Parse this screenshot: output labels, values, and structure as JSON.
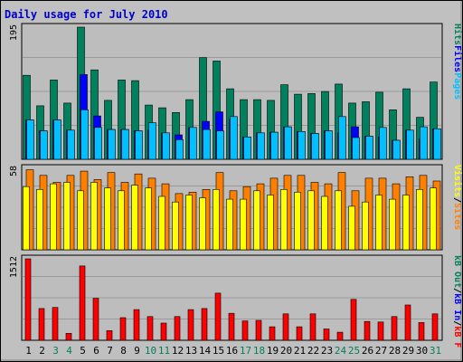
{
  "title": "Daily usage for July 2010",
  "colors": {
    "background": "#C0C0C0",
    "plot_background": "#BDBDBD",
    "title": "#0000CC",
    "hits": "#00805C",
    "files": "#0000FF",
    "pages": "#00C0FF",
    "visits": "#FFFF00",
    "sites": "#FF8000",
    "kb_in": "#0000FF",
    "kb_out": "#00805C",
    "kb_f": "#FF0000",
    "weekend_label": "#00805C",
    "weekday_label": "#000000"
  },
  "chart_data": [
    {
      "type": "bar",
      "panel": "hits-files-pages",
      "ymax_label": "195",
      "ylim": [
        0,
        195
      ],
      "legend": [
        {
          "label": "Pages",
          "color": "#00C0FF"
        },
        {
          "label": "Files",
          "color": "#0000FF"
        },
        {
          "label": "Hits",
          "color": "#00805C"
        }
      ],
      "series": [
        {
          "name": "Hits",
          "values": [
            124,
            79,
            117,
            83,
            195,
            132,
            87,
            117,
            116,
            80,
            76,
            69,
            88,
            150,
            145,
            104,
            88,
            88,
            87,
            110,
            96,
            97,
            100,
            111,
            83,
            85,
            99,
            73,
            104,
            62,
            114
          ]
        },
        {
          "name": "Files",
          "values": [
            58,
            42,
            58,
            43,
            125,
            64,
            44,
            44,
            42,
            43,
            39,
            36,
            47,
            56,
            70,
            59,
            33,
            39,
            40,
            48,
            41,
            38,
            42,
            39,
            48,
            34,
            33,
            28,
            43,
            30,
            45
          ]
        },
        {
          "name": "Pages",
          "values": [
            58,
            42,
            58,
            43,
            73,
            47,
            44,
            44,
            42,
            54,
            39,
            29,
            47,
            44,
            42,
            63,
            33,
            39,
            40,
            48,
            41,
            38,
            42,
            63,
            32,
            34,
            47,
            28,
            43,
            48,
            45
          ]
        }
      ]
    },
    {
      "type": "bar",
      "panel": "visits-sites",
      "ymax_label": "58",
      "ylim": [
        0,
        58
      ],
      "legend": [
        {
          "label": "Sites",
          "color": "#FF8000"
        },
        {
          "label": "/",
          "color": "#000000"
        },
        {
          "label": "Visits",
          "color": "#FFFF00"
        }
      ],
      "series": [
        {
          "name": "Sites",
          "values": [
            57,
            53,
            48,
            53,
            56,
            50,
            55,
            48,
            54,
            51,
            47,
            40,
            41,
            43,
            55,
            42,
            45,
            47,
            51,
            53,
            53,
            48,
            47,
            55,
            42,
            51,
            51,
            47,
            52,
            53,
            49
          ]
        },
        {
          "name": "Visits",
          "values": [
            45,
            43,
            47,
            48,
            42,
            48,
            44,
            42,
            46,
            44,
            38,
            34,
            39,
            37,
            43,
            36,
            36,
            42,
            39,
            43,
            41,
            42,
            38,
            42,
            31,
            34,
            39,
            36,
            39,
            43,
            44
          ]
        }
      ]
    },
    {
      "type": "bar",
      "panel": "kb",
      "ymax_label": "1512",
      "ylim": [
        0,
        1512
      ],
      "legend": [
        {
          "label": "kB F",
          "color": "#FF0000"
        },
        {
          "label": "/",
          "color": "#000000"
        },
        {
          "label": "kB In",
          "color": "#0000FF"
        },
        {
          "label": "/",
          "color": "#000000"
        },
        {
          "label": "kB Out",
          "color": "#00805C"
        }
      ],
      "series": [
        {
          "name": "kB F",
          "values": [
            1512,
            590,
            610,
            130,
            1380,
            780,
            180,
            420,
            570,
            440,
            320,
            440,
            570,
            590,
            875,
            500,
            360,
            370,
            250,
            490,
            250,
            490,
            210,
            150,
            760,
            350,
            340,
            440,
            655,
            330,
            490
          ]
        }
      ]
    }
  ],
  "x_axis": {
    "labels": [
      "1",
      "2",
      "3",
      "4",
      "5",
      "6",
      "7",
      "8",
      "9",
      "10",
      "11",
      "12",
      "13",
      "14",
      "15",
      "16",
      "17",
      "18",
      "19",
      "20",
      "21",
      "22",
      "23",
      "24",
      "25",
      "26",
      "27",
      "28",
      "29",
      "30",
      "31"
    ],
    "weekend_days": [
      "3",
      "4",
      "10",
      "11",
      "17",
      "18",
      "24",
      "25",
      "31"
    ]
  }
}
